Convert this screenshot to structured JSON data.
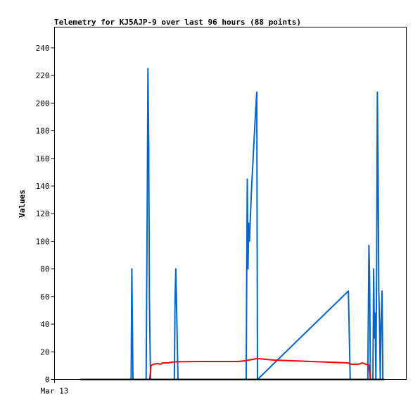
{
  "chart_data": {
    "type": "line",
    "title": "Telemetry for KJ5AJP-9 over last 96 hours (88 points)",
    "ylabel": "Values",
    "xlabel": "",
    "ylim": [
      0,
      255
    ],
    "yticks": [
      0,
      20,
      40,
      60,
      80,
      100,
      120,
      140,
      160,
      180,
      200,
      220,
      240
    ],
    "xlim": [
      0,
      96
    ],
    "xtick_labels": [
      {
        "x": 0,
        "label": "Mar 13"
      }
    ],
    "grid": false,
    "legend": "none",
    "series": [
      {
        "color": "#0066cc",
        "points": [
          [
            20.2,
            0
          ],
          [
            20.5,
            0
          ],
          [
            20.9,
            0
          ],
          [
            21.1,
            80
          ],
          [
            21.4,
            0
          ],
          [
            22.5,
            0
          ],
          [
            25,
            0
          ],
          [
            25.3,
            128
          ],
          [
            25.5,
            225
          ],
          [
            25.7,
            168
          ],
          [
            25.9,
            57
          ],
          [
            26.2,
            0
          ],
          [
            27,
            0
          ],
          [
            32.4,
            0
          ],
          [
            32.7,
            0
          ],
          [
            32.9,
            60
          ],
          [
            33.1,
            80
          ],
          [
            33.4,
            40
          ],
          [
            33.7,
            0
          ],
          [
            34.5,
            0
          ],
          [
            50,
            0
          ],
          [
            52.3,
            0
          ],
          [
            52.6,
            145
          ],
          [
            52.8,
            80
          ],
          [
            53,
            113
          ],
          [
            53.2,
            100
          ],
          [
            53.5,
            120
          ],
          [
            53.8,
            140
          ],
          [
            54.1,
            155
          ],
          [
            54.4,
            170
          ],
          [
            54.7,
            185
          ],
          [
            55,
            200
          ],
          [
            55.2,
            208
          ],
          [
            55.4,
            0
          ],
          [
            80.2,
            64
          ],
          [
            80.7,
            0
          ],
          [
            81.5,
            0
          ],
          [
            85.1,
            0
          ],
          [
            85.5,
            0
          ],
          [
            85.8,
            97
          ],
          [
            86,
            72
          ],
          [
            86.2,
            0
          ],
          [
            86.5,
            0
          ],
          [
            86.9,
            0
          ],
          [
            87.1,
            80
          ],
          [
            87.3,
            30
          ],
          [
            87.5,
            48
          ],
          [
            87.7,
            0
          ],
          [
            87.9,
            75
          ],
          [
            88.1,
            208
          ],
          [
            88.3,
            155
          ],
          [
            88.5,
            65
          ],
          [
            88.7,
            40
          ],
          [
            88.9,
            0
          ],
          [
            89.1,
            40
          ],
          [
            89.4,
            64
          ],
          [
            89.6,
            0
          ],
          [
            90,
            0
          ]
        ]
      },
      {
        "color": "#ff0000",
        "points": [
          [
            26,
            0
          ],
          [
            26.3,
            10
          ],
          [
            27,
            11
          ],
          [
            28,
            11.5
          ],
          [
            29,
            11
          ],
          [
            29.5,
            12
          ],
          [
            31,
            12
          ],
          [
            32,
            12.5
          ],
          [
            33,
            12.8
          ],
          [
            40,
            13
          ],
          [
            50,
            13
          ],
          [
            52,
            13.5
          ],
          [
            53,
            14
          ],
          [
            54,
            14.5
          ],
          [
            55,
            15
          ],
          [
            56,
            15
          ],
          [
            58,
            14.5
          ],
          [
            60,
            14
          ],
          [
            65,
            13.5
          ],
          [
            70,
            13
          ],
          [
            75,
            12.5
          ],
          [
            80,
            12
          ],
          [
            81,
            11
          ],
          [
            83,
            11
          ],
          [
            84,
            12
          ],
          [
            85,
            11
          ],
          [
            85.8,
            10.5
          ],
          [
            86.2,
            0
          ]
        ]
      },
      {
        "color": "#000000",
        "points": [
          [
            7,
            0
          ],
          [
            90,
            0
          ]
        ]
      }
    ]
  }
}
